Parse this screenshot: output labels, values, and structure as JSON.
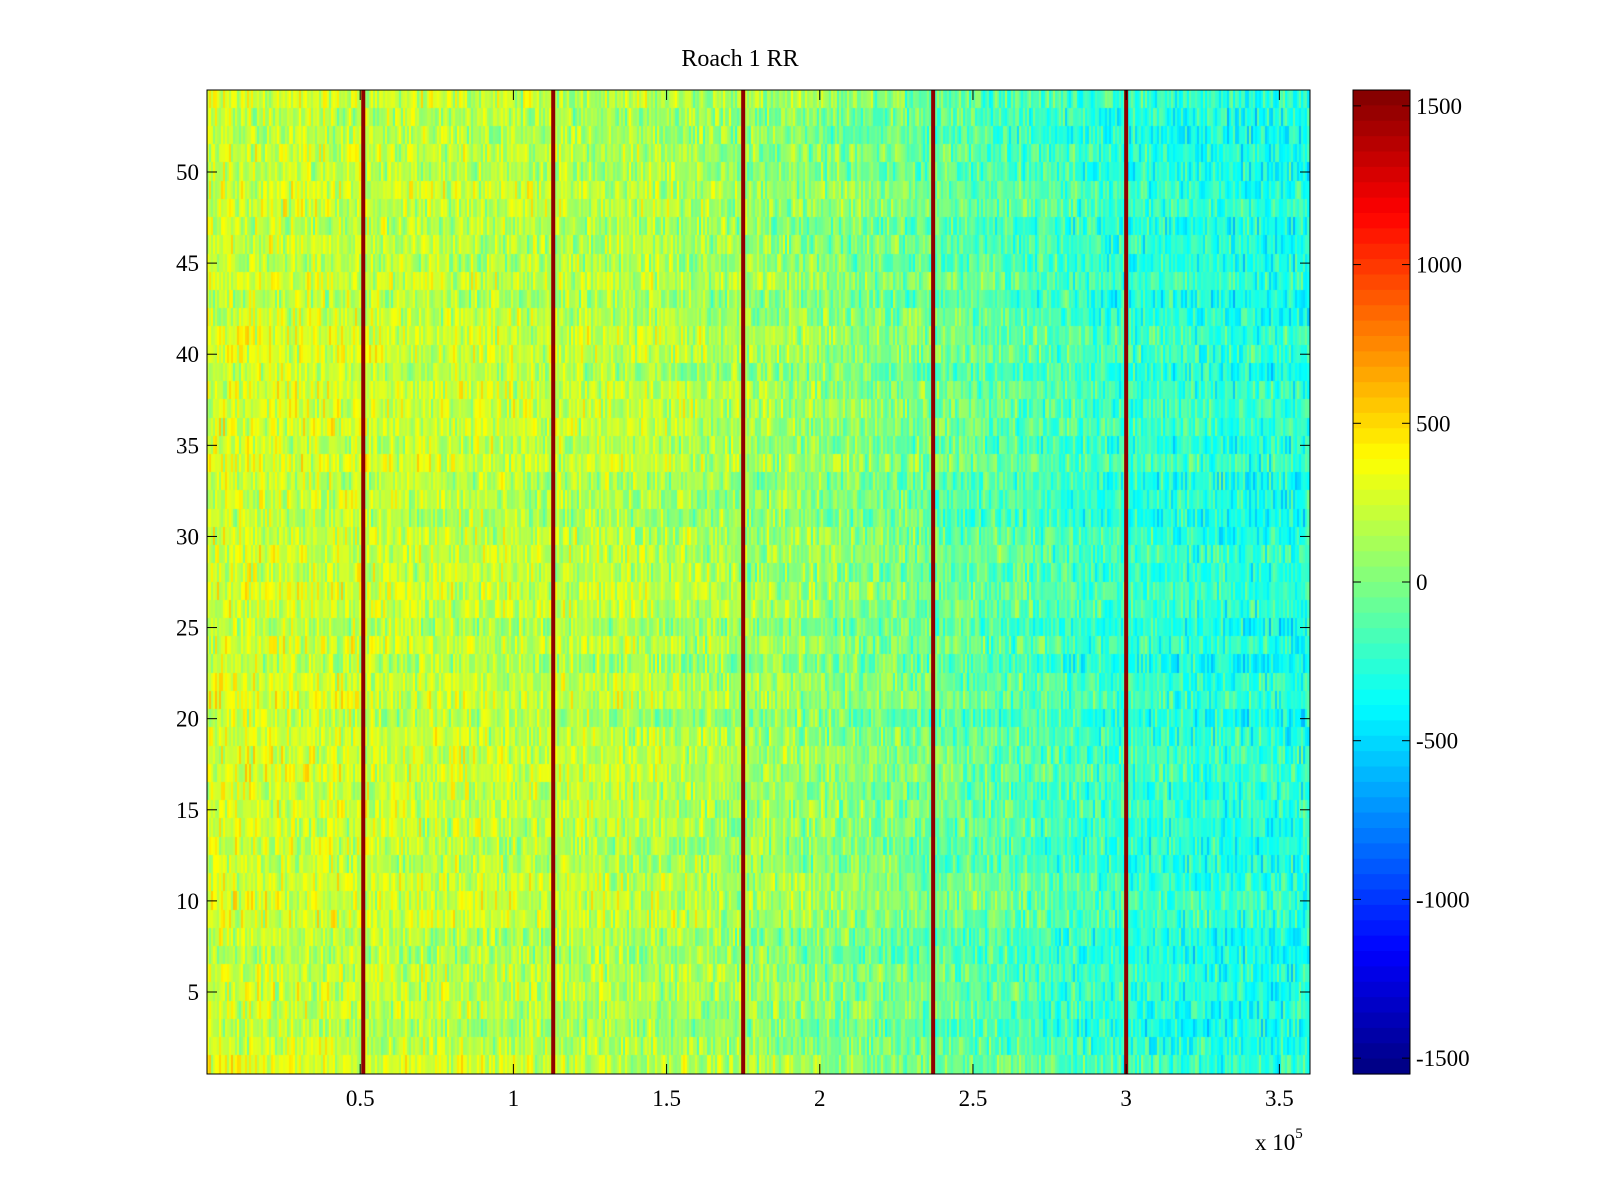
{
  "chart_data": {
    "type": "heatmap",
    "title": "Roach 1 RR",
    "xlabel": "",
    "ylabel": "",
    "x_range": [
      0,
      360000
    ],
    "y_range": [
      0.5,
      54.5
    ],
    "x_ticks": [
      50000,
      100000,
      150000,
      200000,
      250000,
      300000,
      350000
    ],
    "x_tick_labels": [
      "0.5",
      "1",
      "1.5",
      "2",
      "2.5",
      "3",
      "3.5"
    ],
    "x_exponent_label": "x 10",
    "x_exponent_power": "5",
    "y_ticks": [
      5,
      10,
      15,
      20,
      25,
      30,
      35,
      40,
      45,
      50
    ],
    "y_tick_labels": [
      "5",
      "10",
      "15",
      "20",
      "25",
      "30",
      "35",
      "40",
      "45",
      "50"
    ],
    "rows": 54,
    "colormap": "jet",
    "color_range": [
      -1550,
      1550
    ],
    "colorbar_ticks": [
      1500,
      1000,
      500,
      0,
      -500,
      -1000,
      -1500
    ],
    "colorbar_tick_labels": [
      "1500",
      "1000",
      "500",
      "0",
      "-500",
      "-1000",
      "-1500"
    ],
    "artifact_columns_x": [
      51000,
      113000,
      175000,
      237000,
      300000
    ],
    "artifact_value": 1500,
    "trend": {
      "column_means_x": [
        0,
        50000,
        100000,
        150000,
        200000,
        250000,
        300000,
        360000
      ],
      "column_means_value": [
        250,
        220,
        180,
        150,
        40,
        -90,
        -250,
        -300
      ],
      "noise_amplitude": 320
    }
  }
}
